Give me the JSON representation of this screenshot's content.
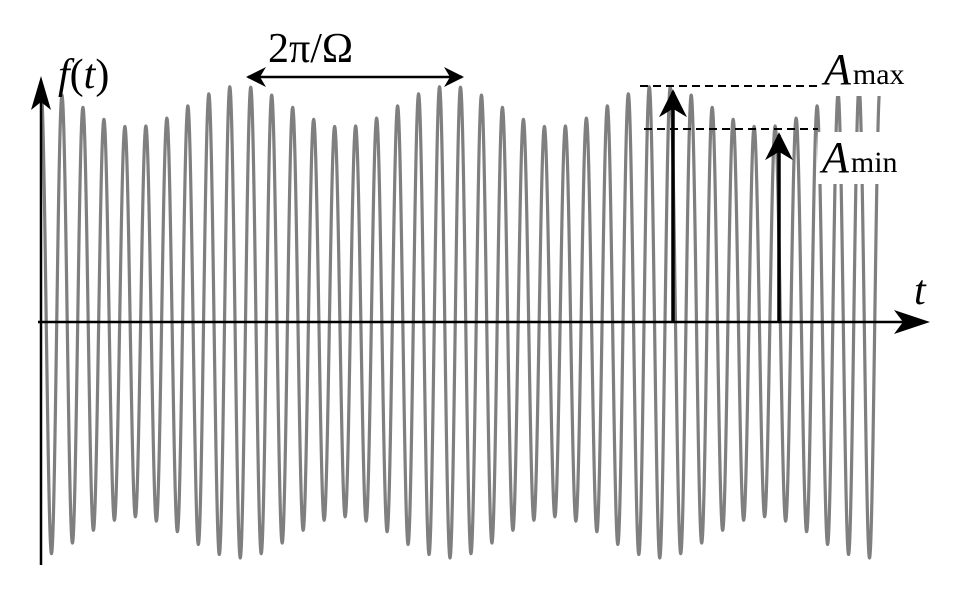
{
  "labels": {
    "y_axis": {
      "f": "f",
      "open": "(",
      "t": "t",
      "close": ")"
    },
    "x_axis": "t",
    "period": {
      "two_pi": "2π/",
      "omega": "Ω"
    },
    "a_max": {
      "A": "A",
      "sub": "max"
    },
    "a_min": {
      "A": "A",
      "sub": "min"
    }
  },
  "signal": {
    "carrier_cycles": 40,
    "beat_cycles": 4,
    "a_max": 1.0,
    "a_min": 0.825
  },
  "colors": {
    "axis": "#000000",
    "signal": "#7f7f7f",
    "guides": "#000000",
    "background": "#ffffff"
  }
}
